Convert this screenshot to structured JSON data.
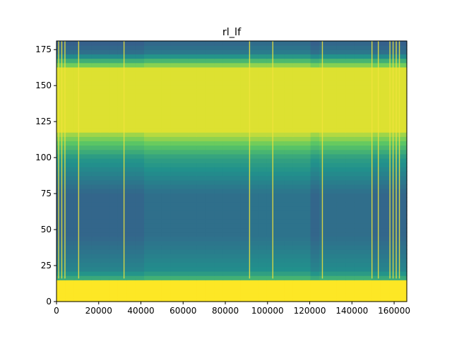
{
  "chart_data": {
    "type": "heatmap",
    "title": "rl_lf",
    "xlabel": "",
    "ylabel": "",
    "xlim": [
      0,
      166000
    ],
    "ylim": [
      0,
      181
    ],
    "x_ticks": [
      0,
      20000,
      40000,
      60000,
      80000,
      100000,
      120000,
      140000,
      160000
    ],
    "x_tick_labels": [
      "0",
      "20000",
      "40000",
      "60000",
      "80000",
      "100000",
      "120000",
      "140000",
      "160000"
    ],
    "y_ticks": [
      0,
      25,
      50,
      75,
      100,
      125,
      150,
      175
    ],
    "y_tick_labels": [
      "0",
      "25",
      "50",
      "75",
      "100",
      "125",
      "150",
      "175"
    ],
    "colormap": "viridis",
    "grid": false,
    "bright_bands_y": [
      {
        "from": 0,
        "to": 16,
        "level": 1.0
      },
      {
        "from": 118,
        "to": 162,
        "level": 0.95
      }
    ],
    "bright_vertical_lines_x": [
      1000,
      2500,
      4000,
      10500,
      32000,
      91500,
      102500,
      126000,
      149500,
      152500,
      158000,
      159500,
      161000,
      162500
    ],
    "colors": {
      "low": "#3b528b",
      "mid": "#21918c",
      "high": "#fde725"
    }
  }
}
